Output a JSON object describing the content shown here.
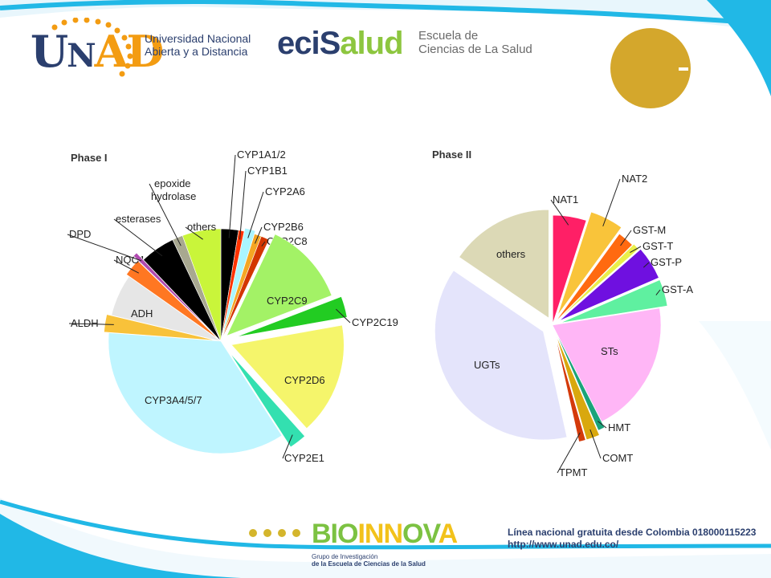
{
  "header": {
    "unad_logo": "UNAD",
    "unad_name_line1": "Universidad Nacional",
    "unad_name_line2": "Abierta y a Distancia",
    "ecisalud_logo": "eciSalud",
    "ecisalud_line1": "Escuela de",
    "ecisalud_line2": "Ciencias de La Salud"
  },
  "chart_data": [
    {
      "type": "pie",
      "title": "Phase I",
      "slices": [
        {
          "label": "CYP1A1/2",
          "value": 2.5,
          "color": "#000000"
        },
        {
          "label": "CYP1B1",
          "value": 0.8,
          "color": "#ff3300"
        },
        {
          "label": "CYP2A6",
          "value": 1.5,
          "color": "#aaf5ff"
        },
        {
          "label": "CYP2B6",
          "value": 1.0,
          "color": "#f5a623"
        },
        {
          "label": "CYP2C8",
          "value": 1.2,
          "color": "#d33600"
        },
        {
          "label": "CYP2C9",
          "value": 12.0,
          "color": "#a3f266"
        },
        {
          "label": "CYP2C19",
          "value": 3.0,
          "color": "#22cc22"
        },
        {
          "label": "CYP2D6",
          "value": 16.0,
          "color": "#f5f56b"
        },
        {
          "label": "CYP2E1",
          "value": 2.5,
          "color": "#33e0b0"
        },
        {
          "label": "CYP3A4/5/7",
          "value": 35.0,
          "color": "#bff5ff"
        },
        {
          "label": "ALDH",
          "value": 2.5,
          "color": "#f8c23a"
        },
        {
          "label": "ADH",
          "value": 6.0,
          "color": "#e6e6e6"
        },
        {
          "label": "NQO1",
          "value": 2.5,
          "color": "#ff7722"
        },
        {
          "label": "DPD",
          "value": 0.6,
          "color": "#b04ab0"
        },
        {
          "label": "esterases",
          "value": 5.0,
          "color": "#000000"
        },
        {
          "label": "epoxide hydrolase",
          "value": 1.5,
          "color": "#a8a890"
        },
        {
          "label": "others",
          "value": 5.5,
          "color": "#c9f53a"
        }
      ]
    },
    {
      "type": "pie",
      "title": "Phase II",
      "slices": [
        {
          "label": "NAT1",
          "value": 5.0,
          "color": "#ff1f66"
        },
        {
          "label": "NAT2",
          "value": 5.0,
          "color": "#f9c43a"
        },
        {
          "label": "GST-M",
          "value": 2.5,
          "color": "#ff6a10"
        },
        {
          "label": "GST-T",
          "value": 1.0,
          "color": "#eaf04a"
        },
        {
          "label": "GST-P",
          "value": 5.0,
          "color": "#6f10e0"
        },
        {
          "label": "GST-A",
          "value": 4.0,
          "color": "#5ff0a0"
        },
        {
          "label": "STs",
          "value": 20.0,
          "color": "#ffb6f6"
        },
        {
          "label": "HMT",
          "value": 1.0,
          "color": "#1aa37a"
        },
        {
          "label": "COMT",
          "value": 2.0,
          "color": "#d9a80e"
        },
        {
          "label": "TPMT",
          "value": 1.0,
          "color": "#d43a0a"
        },
        {
          "label": "UGTs",
          "value": 38.0,
          "color": "#e4e4fb"
        },
        {
          "label": "others",
          "value": 15.5,
          "color": "#dcd9b6"
        }
      ]
    }
  ],
  "footer": {
    "bioinnova_logo": "BIOINNOVA",
    "bioinnova_sub_line1": "Grupo de Investigación",
    "bioinnova_sub_line2": "de la Escuela de Ciencias de la Salud",
    "line1": "Línea nacional gratuita desde Colombia 018000115223",
    "line2": "http://www.unad.edu.co/"
  },
  "colors": {
    "brand_blue": "#2b3f6e",
    "brand_orange": "#f39c12",
    "accent_cyan": "#21b8e6",
    "accent_gold": "#d4a72c"
  }
}
